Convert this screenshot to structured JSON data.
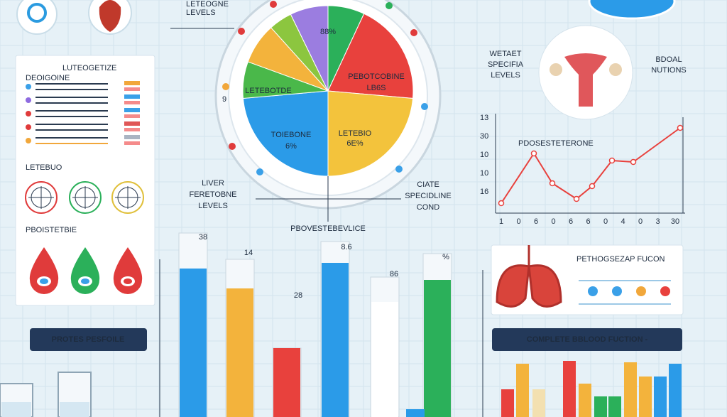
{
  "header": {
    "top_label": [
      "LETEOGNE",
      "LEVELS"
    ]
  },
  "left_panel": {
    "title": "LUTEOGETIZE",
    "subtitle": "DEOIGOINE",
    "section1": "LETEBUO",
    "section2": "PBOISTETBIE"
  },
  "left_button": "PROTES PESFOILE",
  "pie": {
    "labels": [
      "88%",
      "PEBOTCOBINE",
      "LB6S",
      "LETEBOTDE",
      "TOIEBONE",
      "6%",
      "LETEBIO",
      "6E%"
    ],
    "side_label": "9",
    "left_caption": [
      "LIVER",
      "FERETOBNE",
      "LEVELS"
    ],
    "right_caption": [
      "CIATE",
      "SPECIDLINE",
      "COND"
    ],
    "bottom_caption": "PBOVESTEBEVLICE"
  },
  "right_top": {
    "left": [
      "WETAET",
      "SPECIFIA",
      "LEVELS"
    ],
    "right": [
      "BDOAL",
      "NUTIONS"
    ]
  },
  "line_panel": {
    "title": "PDOSESTETERONE",
    "y_labels": [
      "13",
      "30",
      "10",
      "10",
      "16"
    ],
    "x_labels": [
      "1",
      "0",
      "6",
      "0",
      "6",
      "6",
      "0",
      "4",
      "0",
      "3",
      "30"
    ]
  },
  "lung_card": {
    "title": "PETHOGSEZAP FUCON"
  },
  "right_button": "COMPLETE BBLOOD FUCTION -",
  "bar_labels": [
    "38",
    "14",
    "28",
    "8.6",
    "86",
    "%"
  ]
}
